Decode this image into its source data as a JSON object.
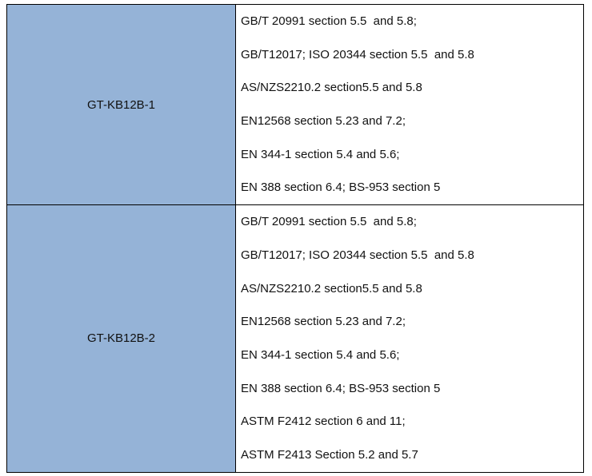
{
  "table": {
    "rows": [
      {
        "model": "GT-KB12B-1",
        "standards": [
          "GB/T 20991 section 5.5  and 5.8;",
          "GB/T12017; ISO 20344 section 5.5  and 5.8",
          "AS/NZS2210.2 section5.5 and 5.8",
          "EN12568 section 5.23 and 7.2;",
          "EN 344-1 section 5.4 and 5.6;",
          "EN 388 section 6.4; BS-953 section 5"
        ]
      },
      {
        "model": "GT-KB12B-2",
        "standards": [
          "GB/T 20991 section 5.5  and 5.8;",
          "GB/T12017; ISO 20344 section 5.5  and 5.8",
          "AS/NZS2210.2 section5.5 and 5.8",
          "EN12568 section 5.23 and 7.2;",
          "EN 344-1 section 5.4 and 5.6;",
          "EN 388 section 6.4; BS-953 section 5",
          "ASTM F2412 section 6 and 11;",
          "ASTM F2413 Section 5.2 and 5.7"
        ]
      }
    ]
  }
}
